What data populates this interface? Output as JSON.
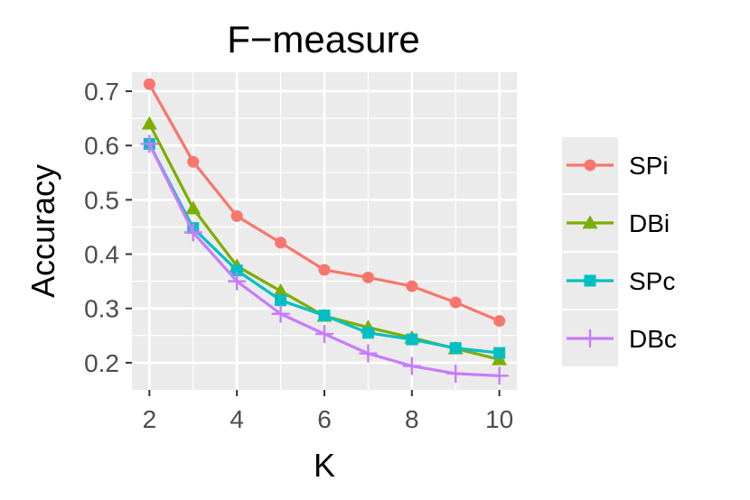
{
  "chart_data": {
    "type": "line",
    "title": "F−measure",
    "xlabel": "K",
    "ylabel": "Accuracy",
    "x": [
      2,
      3,
      4,
      5,
      6,
      7,
      8,
      9,
      10
    ],
    "xlim": [
      1.6,
      10.4
    ],
    "ylim": [
      0.15,
      0.735
    ],
    "xticks": [
      2,
      4,
      6,
      8,
      10
    ],
    "yticks": [
      0.2,
      0.3,
      0.4,
      0.5,
      0.6,
      0.7
    ],
    "ytick_labels": [
      "0.2",
      "0.3",
      "0.4",
      "0.5",
      "0.6",
      "0.7"
    ],
    "grid": true,
    "legend_position": "right",
    "series": [
      {
        "name": "SPi",
        "color": "#F8766D",
        "marker": "circle",
        "values": [
          0.713,
          0.57,
          0.47,
          0.421,
          0.371,
          0.357,
          0.341,
          0.311,
          0.277
        ]
      },
      {
        "name": "DBi",
        "color": "#7CAE00",
        "marker": "triangle",
        "values": [
          0.64,
          0.484,
          0.378,
          0.332,
          0.286,
          0.265,
          0.246,
          0.226,
          0.206
        ]
      },
      {
        "name": "SPc",
        "color": "#00BFC4",
        "marker": "square",
        "values": [
          0.603,
          0.448,
          0.37,
          0.315,
          0.287,
          0.255,
          0.243,
          0.227,
          0.218
        ]
      },
      {
        "name": "DBc",
        "color": "#C77CFF",
        "marker": "plus",
        "values": [
          0.603,
          0.44,
          0.35,
          0.29,
          0.253,
          0.217,
          0.194,
          0.18,
          0.176
        ]
      }
    ]
  }
}
